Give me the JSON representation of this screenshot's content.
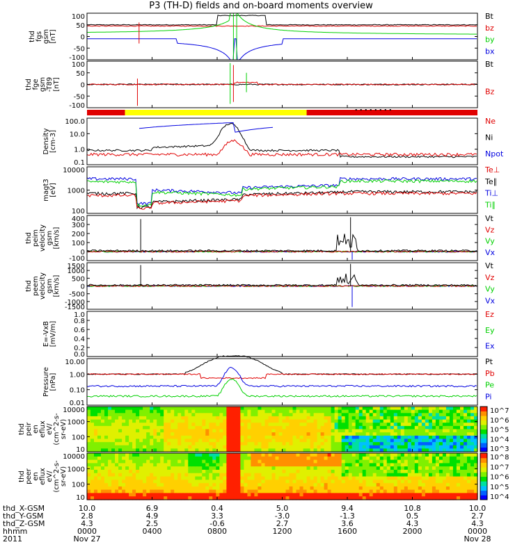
{
  "title": "P3 (TH-D) fields and on-board moments overview",
  "colors": {
    "black": "#000000",
    "red": "#e00000",
    "green": "#00d000",
    "blue": "#0000e0",
    "yellow": "#ffff00"
  },
  "chart_data": [
    {
      "type": "line",
      "ylabel": [
        "thd",
        "fgs",
        "gsm",
        "[nT]"
      ],
      "ylim": [
        -100,
        100
      ],
      "yticks": [
        "100",
        "50",
        "0",
        "-50",
        "-100"
      ],
      "legend": [
        {
          "name": "Bt",
          "color": "#000000"
        },
        {
          "name": "bz",
          "color": "#e00000"
        },
        {
          "name": "by",
          "color": "#00d000"
        },
        {
          "name": "bx",
          "color": "#0000e0"
        }
      ]
    },
    {
      "type": "line",
      "ylabel": [
        "thd",
        "fge",
        "gsm",
        "-T89",
        "[nT]"
      ],
      "ylim": [
        -120,
        120
      ],
      "yticks": [
        "100",
        "50",
        "0",
        "-50",
        "-100"
      ],
      "legend": [
        {
          "name": "Bt",
          "color": "#000000"
        },
        {
          "name": "Bz",
          "color": "#e00000"
        }
      ]
    },
    {
      "type": "bar",
      "ylabel": [],
      "segments": [
        {
          "from": "0000",
          "to": "0220",
          "color": "red"
        },
        {
          "from": "0220",
          "to": "1330",
          "color": "yellow"
        },
        {
          "from": "1330",
          "to": "2400",
          "color": "red"
        }
      ]
    },
    {
      "type": "line",
      "ylabel": [
        "Density",
        "[cm-3]"
      ],
      "scale": "log",
      "yticks": [
        "100.0",
        "10.0",
        "1.0",
        "0.1"
      ],
      "legend": [
        {
          "name": "Ne",
          "color": "#e00000"
        },
        {
          "name": "Ni",
          "color": "#000000"
        },
        {
          "name": "Npot",
          "color": "#0000e0"
        }
      ]
    },
    {
      "type": "line",
      "ylabel": [
        "magt3",
        "[eV]"
      ],
      "scale": "log",
      "yticks": [
        "10000",
        "1000",
        "100"
      ],
      "legend": [
        {
          "name": "Te⊥",
          "color": "#e00000"
        },
        {
          "name": "Te∥",
          "color": "#000000"
        },
        {
          "name": "Ti⊥",
          "color": "#0000e0"
        },
        {
          "name": "Ti∥",
          "color": "#00d000"
        }
      ]
    },
    {
      "type": "line",
      "ylabel": [
        "thd",
        "peim",
        "velocity",
        "gsm",
        "[km/s]"
      ],
      "ylim": [
        -100,
        400
      ],
      "yticks": [
        "400",
        "300",
        "200",
        "100",
        "0",
        "-100"
      ],
      "legend": [
        {
          "name": "Vt",
          "color": "#000000"
        },
        {
          "name": "Vz",
          "color": "#e00000"
        },
        {
          "name": "Vy",
          "color": "#00d000"
        },
        {
          "name": "Vx",
          "color": "#0000e0"
        }
      ]
    },
    {
      "type": "line",
      "ylabel": [
        "thd",
        "peem",
        "velocity",
        "gsm",
        "[km/s]"
      ],
      "ylim": [
        -1500,
        1500
      ],
      "yticks": [
        "1500",
        "1000",
        "500",
        "0",
        "-500",
        "-1000",
        "-1500"
      ],
      "legend": [
        {
          "name": "Vt",
          "color": "#000000"
        },
        {
          "name": "Vz",
          "color": "#e00000"
        },
        {
          "name": "Vy",
          "color": "#00d000"
        },
        {
          "name": "Vx",
          "color": "#0000e0"
        }
      ]
    },
    {
      "type": "line",
      "ylabel": [
        "E=-VxB",
        "[mV/m]"
      ],
      "ylim": [
        0,
        1
      ],
      "yticks": [
        "1.0",
        "0.8",
        "0.6",
        "0.4",
        "0.2",
        "0.0"
      ],
      "legend": [
        {
          "name": "Ez",
          "color": "#e00000"
        },
        {
          "name": "Ey",
          "color": "#00d000"
        },
        {
          "name": "Ex",
          "color": "#0000e0"
        }
      ]
    },
    {
      "type": "line",
      "ylabel": [
        "Pressure",
        "[nPa]"
      ],
      "scale": "log",
      "yticks": [
        "10.00",
        "1.00",
        "0.10",
        "0.01"
      ],
      "legend": [
        {
          "name": "Pt",
          "color": "#000000"
        },
        {
          "name": "Pb",
          "color": "#e00000"
        },
        {
          "name": "Pe",
          "color": "#00d000"
        },
        {
          "name": "Pi",
          "color": "#0000e0"
        }
      ]
    },
    {
      "type": "heatmap",
      "ylabel": [
        "thd",
        "peir",
        "en",
        "eflux",
        "eV/",
        "(cm^2-s-",
        "sr-eV)"
      ],
      "scale": "log",
      "yticks": [
        "10000",
        "1000",
        "100",
        "10"
      ],
      "colorbar": [
        "10^7",
        "10^6",
        "10^5",
        "10^4",
        "10^3"
      ]
    },
    {
      "type": "heatmap",
      "ylabel": [
        "thd",
        "peer",
        "en",
        "eflux",
        "eV/",
        "(cm^2-s-",
        "sr-eV)"
      ],
      "scale": "log",
      "yticks": [
        "10000",
        "1000",
        "100",
        "10"
      ],
      "colorbar": [
        "10^8",
        "10^7",
        "10^6",
        "10^5",
        "10^4"
      ]
    }
  ],
  "x_ticks": [
    "0000",
    "0400",
    "0800",
    "1200",
    "1600",
    "2000",
    "0000"
  ],
  "ephemeris": {
    "labels": [
      "thd_X-GSM",
      "thd_Y-GSM",
      "thd_Z-GSM",
      "hhmm",
      "2011"
    ],
    "rows": [
      [
        "10.0",
        "6.9",
        "0.4",
        "5.0",
        "9.4",
        "10.8",
        "10.0"
      ],
      [
        "2.8",
        "4.9",
        "3.3",
        "-3.0",
        "-1.3",
        "0.5",
        "2.7"
      ],
      [
        "4.3",
        "2.5",
        "-0.6",
        "2.7",
        "3.6",
        "4.3",
        "4.3"
      ]
    ],
    "dates": [
      "Nov 27",
      "Nov 28"
    ]
  }
}
